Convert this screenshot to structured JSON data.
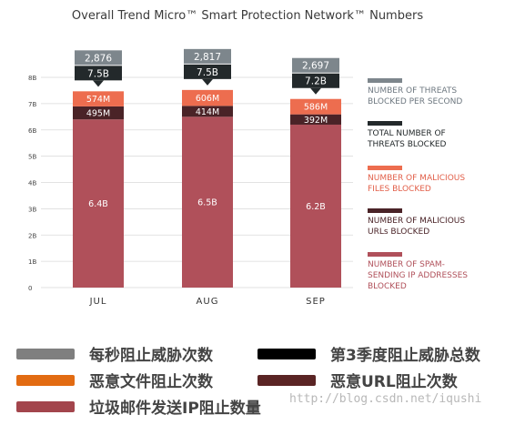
{
  "chart_data": {
    "type": "bar",
    "stacked": true,
    "title": "Overall Trend Micro™ Smart Protection Network™ Numbers",
    "categories": [
      "JUL",
      "AUG",
      "SEP"
    ],
    "y_ticks": [
      "0",
      "1B",
      "2B",
      "3B",
      "4B",
      "5B",
      "6B",
      "7B",
      "8B"
    ],
    "ylim": [
      0,
      8
    ],
    "yunit": "billions",
    "grid": true,
    "legend_position": "right",
    "series": [
      {
        "name": "NUMBER OF SPAM-SENDING IP ADDRESSES BLOCKED",
        "values": [
          6.4,
          6.5,
          6.2
        ],
        "labels": [
          "6.4B",
          "6.5B",
          "6.2B"
        ],
        "color": "#b0505a"
      },
      {
        "name": "NUMBER OF MALICIOUS URLs BLOCKED",
        "values": [
          0.495,
          0.414,
          0.392
        ],
        "labels": [
          "495M",
          "414M",
          "392M"
        ],
        "color": "#4a2327"
      },
      {
        "name": "NUMBER OF MALICIOUS FILES BLOCKED",
        "values": [
          0.574,
          0.606,
          0.586
        ],
        "labels": [
          "574M",
          "606M",
          "586M"
        ],
        "color": "#ed6d4f"
      }
    ],
    "totals": {
      "name": "TOTAL NUMBER OF THREATS BLOCKED",
      "labels": [
        "7.5B",
        "7.5B",
        "7.2B"
      ],
      "values": [
        7.5,
        7.5,
        7.2
      ],
      "color": "#23292b"
    },
    "per_second": {
      "name": "NUMBER OF THREATS BLOCKED PER SECOND",
      "labels": [
        "2,876",
        "2,817",
        "2,697"
      ],
      "values": [
        2876,
        2817,
        2697
      ],
      "color": "#7d868c"
    },
    "legend": [
      {
        "lines": [
          "NUMBER OF THREATS",
          "BLOCKED PER SECOND"
        ],
        "color": "#7d868c",
        "text_color": "#6e7880"
      },
      {
        "lines": [
          "TOTAL NUMBER OF",
          "THREATS BLOCKED"
        ],
        "color": "#23292b",
        "text_color": "#23292b"
      },
      {
        "lines": [
          "NUMBER OF MALICIOUS",
          "FILES BLOCKED"
        ],
        "color": "#ed6d4f",
        "text_color": "#e2604a"
      },
      {
        "lines": [
          "NUMBER OF MALICIOUS",
          "URLs BLOCKED"
        ],
        "color": "#4a2327",
        "text_color": "#4a2327"
      },
      {
        "lines": [
          "NUMBER OF SPAM-",
          "SENDING IP ADDRESSES",
          "BLOCKED"
        ],
        "color": "#b0505a",
        "text_color": "#b0505a"
      }
    ]
  },
  "cn_legend": [
    {
      "label": "每秒阻止威胁次数",
      "color": "#7f7f7f"
    },
    {
      "label": "第3季度阻止威胁总数",
      "color": "#000000"
    },
    {
      "label": "恶意文件阻止次数",
      "color": "#e26b12"
    },
    {
      "label": "恶意URL阻止次数",
      "color": "#5a2424"
    },
    {
      "label": "垃圾邮件发送IP阻止数量",
      "color": "#a3454c"
    }
  ],
  "watermark": "http://blog.csdn.net/iqushi"
}
